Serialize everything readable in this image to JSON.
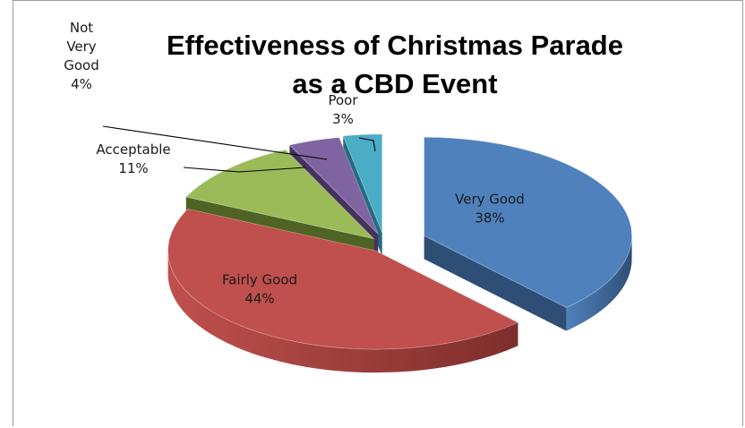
{
  "chart_data": {
    "type": "pie",
    "title_lines": [
      "Effectiveness of Christmas Parade",
      "as a CBD Event"
    ],
    "slices": [
      {
        "label_lines": [
          "Very Good"
        ],
        "percent_label": "38%",
        "value": 38,
        "color": "#4F81BD",
        "side": "#2F4E75"
      },
      {
        "label_lines": [
          "Fairly Good"
        ],
        "percent_label": "44%",
        "value": 44,
        "color": "#C0504D",
        "side": "#7D2E2B"
      },
      {
        "label_lines": [
          "Acceptable"
        ],
        "percent_label": "11%",
        "value": 11,
        "color": "#9BBB59",
        "side": "#4F6324"
      },
      {
        "label_lines": [
          "Not",
          "Very",
          "Good"
        ],
        "percent_label": "4%",
        "value": 4,
        "color": "#8064A2",
        "side": "#46325E"
      },
      {
        "label_lines": [
          "Poor"
        ],
        "percent_label": "3%",
        "value": 3,
        "color": "#4BACC6",
        "side": "#256B7E"
      }
    ],
    "style": "3d-exploded"
  }
}
